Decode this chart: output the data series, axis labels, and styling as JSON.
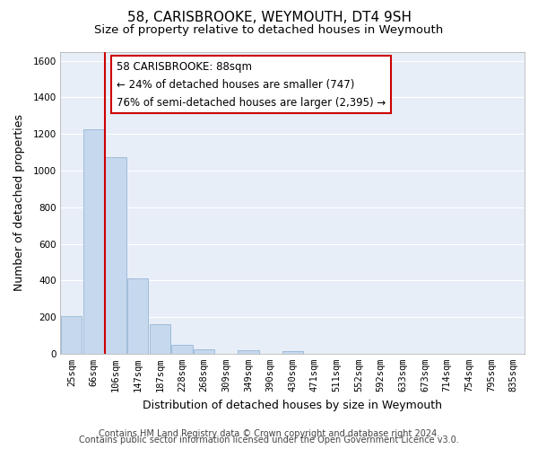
{
  "title": "58, CARISBROOKE, WEYMOUTH, DT4 9SH",
  "subtitle": "Size of property relative to detached houses in Weymouth",
  "xlabel": "Distribution of detached houses by size in Weymouth",
  "ylabel": "Number of detached properties",
  "categories": [
    "25sqm",
    "66sqm",
    "106sqm",
    "147sqm",
    "187sqm",
    "228sqm",
    "268sqm",
    "309sqm",
    "349sqm",
    "390sqm",
    "430sqm",
    "471sqm",
    "511sqm",
    "552sqm",
    "592sqm",
    "633sqm",
    "673sqm",
    "714sqm",
    "754sqm",
    "795sqm",
    "835sqm"
  ],
  "values": [
    205,
    1225,
    1075,
    410,
    160,
    48,
    25,
    0,
    20,
    0,
    15,
    0,
    0,
    0,
    0,
    0,
    0,
    0,
    0,
    0,
    0
  ],
  "bar_color": "#c5d8ee",
  "bar_edge_color": "#a0bcd8",
  "property_line_x": 1.5,
  "property_line_color": "#cc0000",
  "ylim": [
    0,
    1650
  ],
  "yticks": [
    0,
    200,
    400,
    600,
    800,
    1000,
    1200,
    1400,
    1600
  ],
  "annotation_text_line1": "58 CARISBROOKE: 88sqm",
  "annotation_text_line2": "← 24% of detached houses are smaller (747)",
  "annotation_text_line3": "76% of semi-detached houses are larger (2,395) →",
  "footer_line1": "Contains HM Land Registry data © Crown copyright and database right 2024.",
  "footer_line2": "Contains public sector information licensed under the Open Government Licence v3.0.",
  "background_color": "#ffffff",
  "plot_bg_color": "#e8eef8",
  "grid_color": "#ffffff",
  "title_fontsize": 11,
  "subtitle_fontsize": 9.5,
  "xlabel_fontsize": 9,
  "ylabel_fontsize": 9,
  "tick_fontsize": 7.5,
  "annotation_fontsize": 8.5,
  "footer_fontsize": 7
}
